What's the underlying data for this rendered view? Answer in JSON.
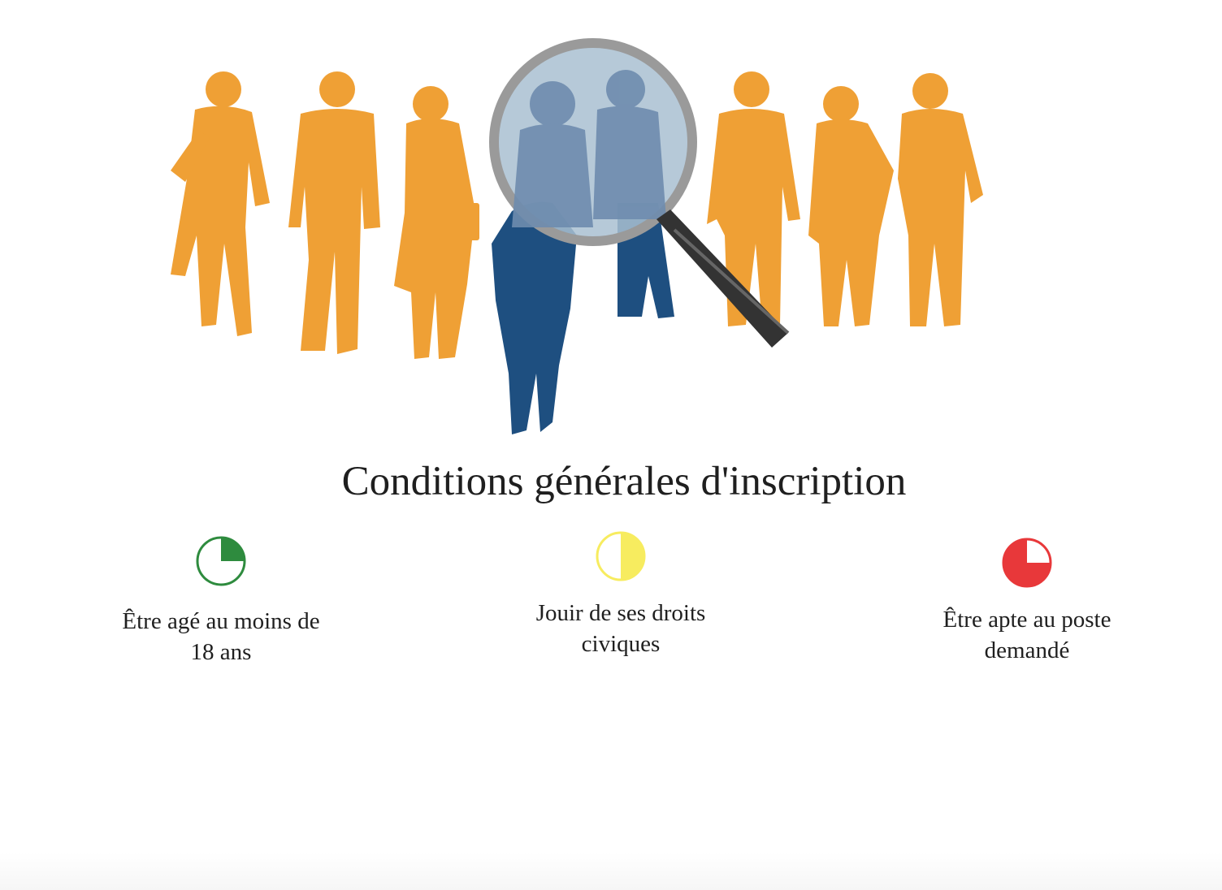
{
  "hero": {
    "image_name": "recruitment-magnifier-illustration",
    "colors": {
      "silhouettes": "#EFA035",
      "focus_person": "#1E4F80",
      "lens": "#A9BFD1",
      "handle": "#333333"
    }
  },
  "page": {
    "title": "Conditions générales d'inscription"
  },
  "conditions": [
    {
      "label": "Être agé au moins de 18 ans",
      "icon": "pie-quarter-icon",
      "color": "#2E8B3E",
      "fill_fraction": 0.25
    },
    {
      "label": "Jouir de ses droits civiques",
      "icon": "pie-half-icon",
      "color": "#F7EC5F",
      "fill_fraction": 0.5
    },
    {
      "label": "Être apte au poste demandé",
      "icon": "pie-three-quarter-icon",
      "color": "#E8383A",
      "fill_fraction": 0.75
    }
  ]
}
